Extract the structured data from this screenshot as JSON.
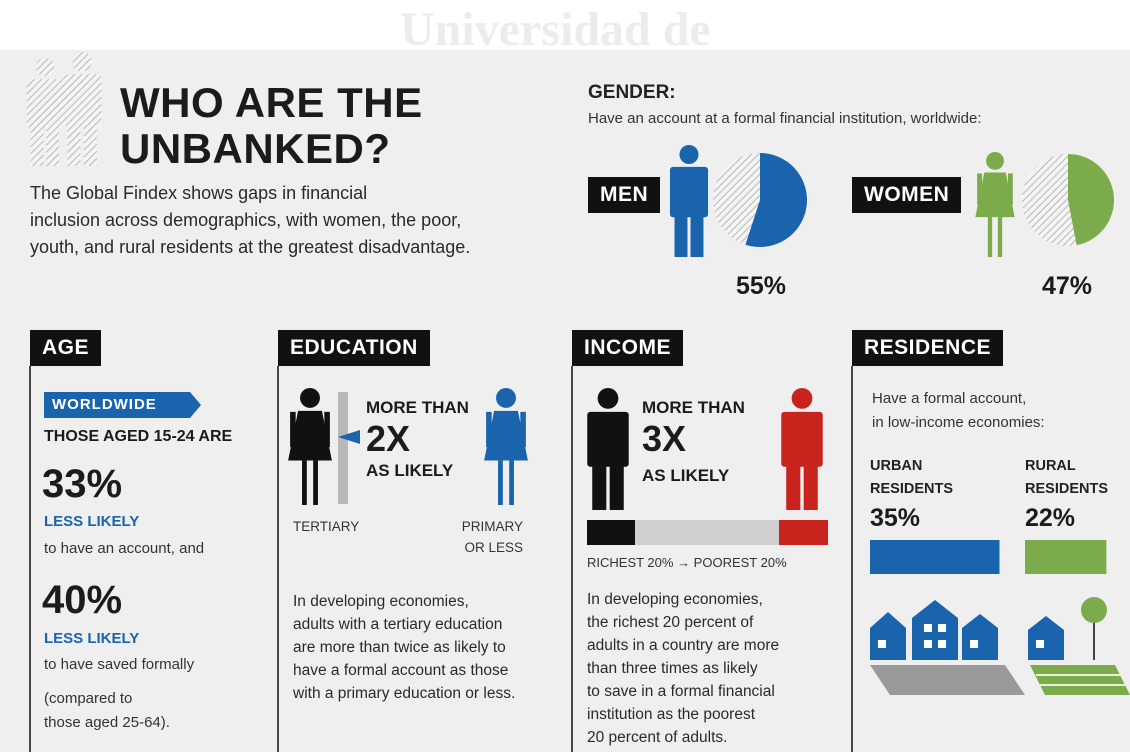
{
  "watermark": "Universidad de",
  "header": {
    "title_lines": [
      "WHO ARE THE",
      "UNBANKED?"
    ],
    "intro_lines": [
      "The Global Findex shows gaps in financial",
      "inclusion across demographics, with women, the poor,",
      "youth, and rural residents at the greatest disadvantage."
    ]
  },
  "gender": {
    "heading": "GENDER:",
    "subtitle": "Have an account at a formal financial institution, worldwide:",
    "groups": [
      {
        "label": "MEN",
        "value": 55,
        "value_label": "55%",
        "color": "#1a64ad"
      },
      {
        "label": "WOMEN",
        "value": 47,
        "value_label": "47%",
        "color": "#7bab4a"
      }
    ]
  },
  "age": {
    "heading": "AGE",
    "tag": "WORLDWIDE",
    "lead": "THOSE AGED 15-24 ARE",
    "items": [
      {
        "figure": "33%",
        "emphasis": "LESS LIKELY",
        "text": "to have an account, and"
      },
      {
        "figure": "40%",
        "emphasis": "LESS LIKELY",
        "text": "to have saved formally"
      }
    ],
    "note_lines": [
      "(compared to",
      "those aged 25-64)."
    ]
  },
  "education": {
    "heading": "EDUCATION",
    "claim_lines": [
      "MORE THAN",
      "2X",
      "AS LIKELY"
    ],
    "left_label": "TERTIARY",
    "right_label_lines": [
      "PRIMARY",
      "OR LESS"
    ],
    "body_lines": [
      "In developing economies,",
      "adults with a tertiary education",
      "are more than twice as likely to",
      "have a formal account as those",
      "with a primary education or less."
    ]
  },
  "income": {
    "heading": "INCOME",
    "claim_lines": [
      "MORE THAN",
      "3X",
      "AS LIKELY"
    ],
    "scale_label": "RICHEST 20% → POOREST 20%",
    "body_lines": [
      "In developing economies,",
      "the richest 20 percent of",
      "adults in a country are more",
      "than three times as likely",
      "to save in a formal financial",
      "institution as the poorest",
      "20 percent of adults."
    ]
  },
  "residence": {
    "heading": "RESIDENCE",
    "note_lines": [
      "Have a formal account,",
      "in low-income economies:"
    ],
    "groups": [
      {
        "label_lines": [
          "URBAN",
          "RESIDENTS"
        ],
        "value": 35,
        "value_label": "35%",
        "color": "#1a64ad"
      },
      {
        "label_lines": [
          "RURAL",
          "RESIDENTS"
        ],
        "value": 22,
        "value_label": "22%",
        "color": "#7bab4a"
      }
    ]
  }
}
